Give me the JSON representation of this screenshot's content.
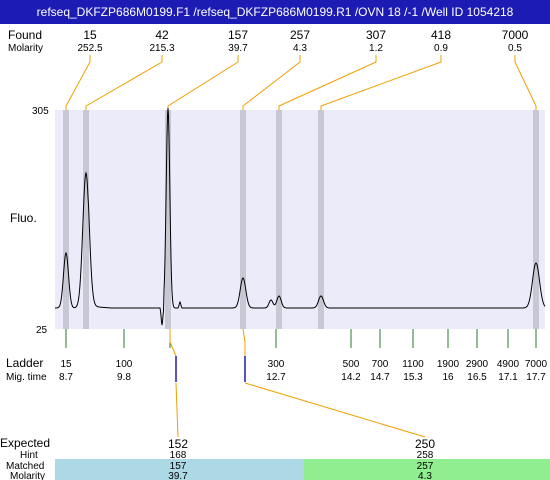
{
  "title": "refseq_DKFZP686M0199.F1 /refseq_DKFZP686M0199.R1 /OVN 18 /-1 /Well ID 1054218",
  "labels": {
    "found": "Found",
    "molarity": "Molarity",
    "fluo": "Fluo.",
    "ladder": "Ladder",
    "mig_time": "Mig. time",
    "expected": "Expected",
    "hint": "Hint",
    "matched": "Matched",
    "molarity_bottom": "Molarity"
  },
  "colors": {
    "title_bg": "#1c1cb4",
    "plot_bg": "#ebebfa",
    "marker_band": "#c8c8d4",
    "connector": "#f0a000",
    "ladder_tick": "#2a7a2a",
    "ladder_accent": "#1c1cb4",
    "match_band_1": "#add8e6",
    "match_band_2": "#90ee90"
  },
  "chart_data": {
    "type": "line",
    "title": "",
    "ylabel": "Fluo.",
    "ylim": [
      25,
      305
    ],
    "y_ticks": [
      "305",
      "25"
    ],
    "found_peaks": [
      {
        "size": "15",
        "molarity": "252.5"
      },
      {
        "size": "42",
        "molarity": "215.3"
      },
      {
        "size": "157",
        "molarity": "39.7"
      },
      {
        "size": "257",
        "molarity": "4.3"
      },
      {
        "size": "307",
        "molarity": "1.2"
      },
      {
        "size": "418",
        "molarity": "0.9"
      },
      {
        "size": "7000",
        "molarity": "0.5"
      }
    ],
    "ladder": [
      {
        "size": "15",
        "time": "8.7"
      },
      {
        "size": "100",
        "time": "9.8"
      },
      {
        "size": "300",
        "time": "12.7"
      },
      {
        "size": "500",
        "time": "14.2"
      },
      {
        "size": "700",
        "time": "14.7"
      },
      {
        "size": "1100",
        "time": "15.3"
      },
      {
        "size": "1900",
        "time": "16"
      },
      {
        "size": "2900",
        "time": "16.5"
      },
      {
        "size": "4900",
        "time": "17.1"
      },
      {
        "size": "7000",
        "time": "17.7"
      }
    ],
    "expected": [
      {
        "expected": "152",
        "hint": "168",
        "matched": "157",
        "molarity": "39.7"
      },
      {
        "expected": "250",
        "hint": "258",
        "matched": "257",
        "molarity": "4.3"
      }
    ]
  }
}
